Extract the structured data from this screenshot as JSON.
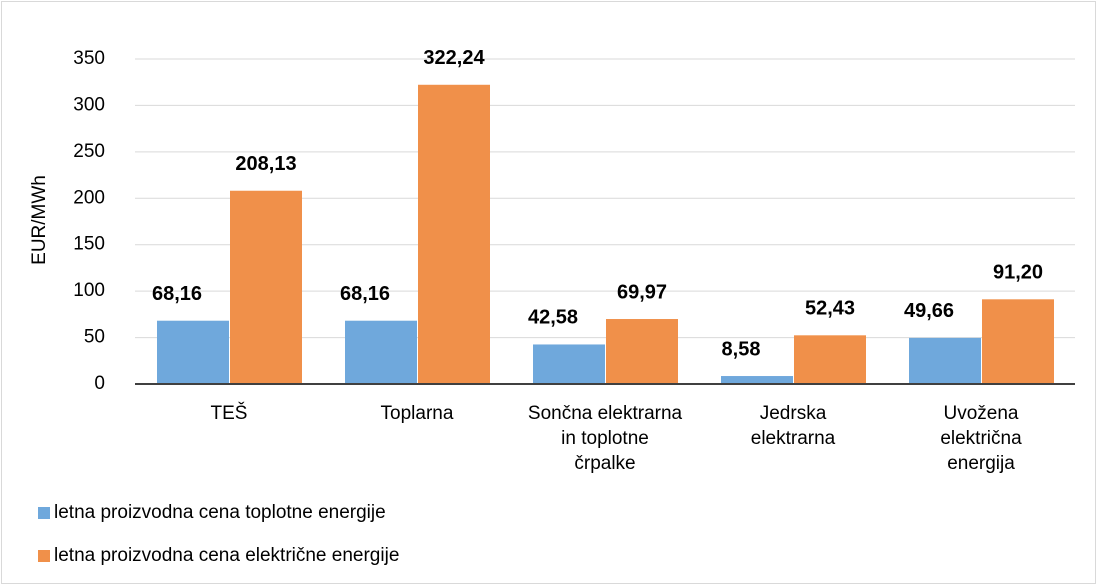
{
  "chart_data": {
    "type": "bar",
    "y_label": "EUR/MWh",
    "categories": [
      "TEŠ",
      "Toplarna",
      "Sončna elektrarna in toplotne črpalke",
      "Jedrska elektrarna",
      "Uvožena električna energija"
    ],
    "series": [
      {
        "name": "letna proizvodna cena toplotne energije",
        "color": "#6fa8dc",
        "values": [
          68.16,
          68.16,
          42.58,
          8.58,
          49.66
        ],
        "value_labels": [
          "68,16",
          "68,16",
          "42,58",
          "8,58",
          "49,66"
        ]
      },
      {
        "name": "letna proizvodna cena električne energije",
        "color": "#f0904a",
        "values": [
          208.13,
          322.24,
          69.97,
          52.43,
          91.2
        ],
        "value_labels": [
          "208,13",
          "322,24",
          "69,97",
          "52,43",
          "91,20"
        ]
      }
    ],
    "ylim": [
      0,
      350
    ],
    "yticks": [
      0,
      50,
      100,
      150,
      200,
      250,
      300,
      350
    ],
    "grid": true,
    "legend": "bottom-left"
  }
}
